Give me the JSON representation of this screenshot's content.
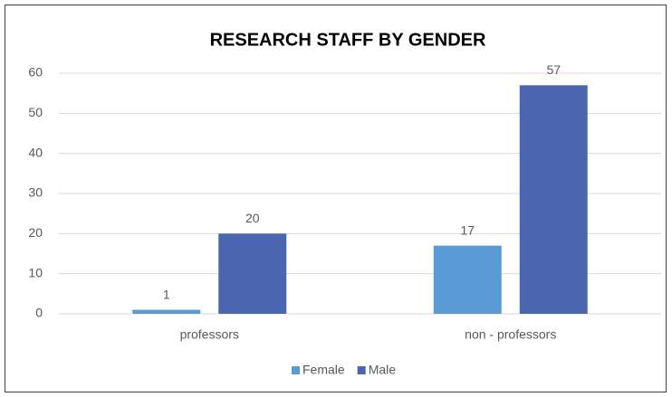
{
  "chart_data": {
    "type": "bar",
    "title": "RESEARCH STAFF BY GENDER",
    "categories": [
      "professors",
      "non - professors"
    ],
    "series": [
      {
        "name": "Female",
        "color": "#5b9bd5",
        "values": [
          1,
          17
        ]
      },
      {
        "name": "Male",
        "color": "#4a66b0",
        "values": [
          20,
          57
        ]
      }
    ],
    "ylim": [
      0,
      60
    ],
    "yticks": [
      0,
      10,
      20,
      30,
      40,
      50,
      60
    ],
    "grid": true,
    "legend": "bottom"
  }
}
